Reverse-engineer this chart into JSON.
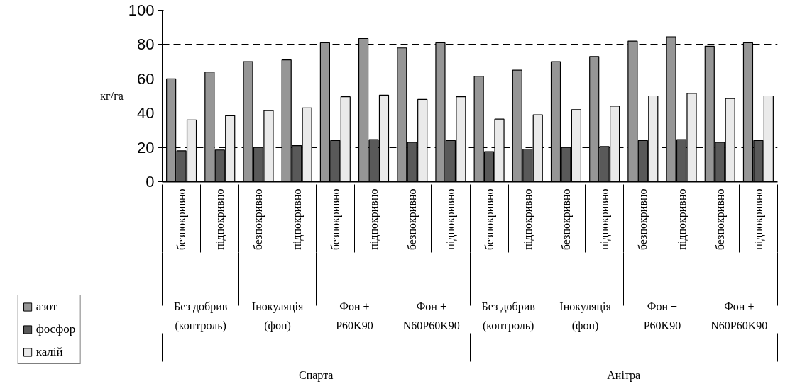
{
  "chart_data": {
    "type": "bar",
    "ylabel": "кг/га",
    "categories": [
      "безпокривно",
      "підпокривно",
      "безпокривно",
      "підпокривно",
      "безпокривно",
      "підпокривно",
      "безпокривно",
      "підпокривно",
      "безпокривно",
      "підпокривно",
      "безпокривно",
      "підпокривно",
      "безпокривно",
      "підпокривно",
      "безпокривно",
      "підпокривно"
    ],
    "annotations": [
      "Без добрив\n(контроль)",
      "Інокуляція\n(фон)",
      "Фон +\nP60K90",
      "Фон +\nN60P60K90",
      "Без добрив\n(контроль)",
      "Інокуляція\n(фон)",
      "Фон +\nP60K90",
      "Фон +\nN60P60K90",
      "Спарта",
      "Анітра"
    ],
    "series": [
      {
        "name": "азот",
        "color": "#969696",
        "values": [
          60,
          64,
          70,
          71,
          81,
          83.5,
          78,
          81,
          61.5,
          65,
          70,
          73,
          82,
          84.5,
          79,
          81
        ]
      },
      {
        "name": "фосфор",
        "color": "#595959",
        "values": [
          18,
          18.5,
          20,
          21,
          24,
          24.5,
          23,
          24,
          17.5,
          19,
          20,
          20.5,
          24,
          24.5,
          23,
          24
        ]
      },
      {
        "name": "калій",
        "color": "#eaeaea",
        "values": [
          36,
          38.5,
          41.5,
          43,
          49.5,
          50.5,
          48,
          49.5,
          36.5,
          39,
          42,
          44,
          50,
          51.5,
          48.5,
          50
        ]
      }
    ],
    "ylim": [
      0,
      100
    ],
    "yticks": [
      0,
      20,
      40,
      60,
      80,
      100
    ],
    "grid": "y",
    "legend": "bottom left"
  }
}
